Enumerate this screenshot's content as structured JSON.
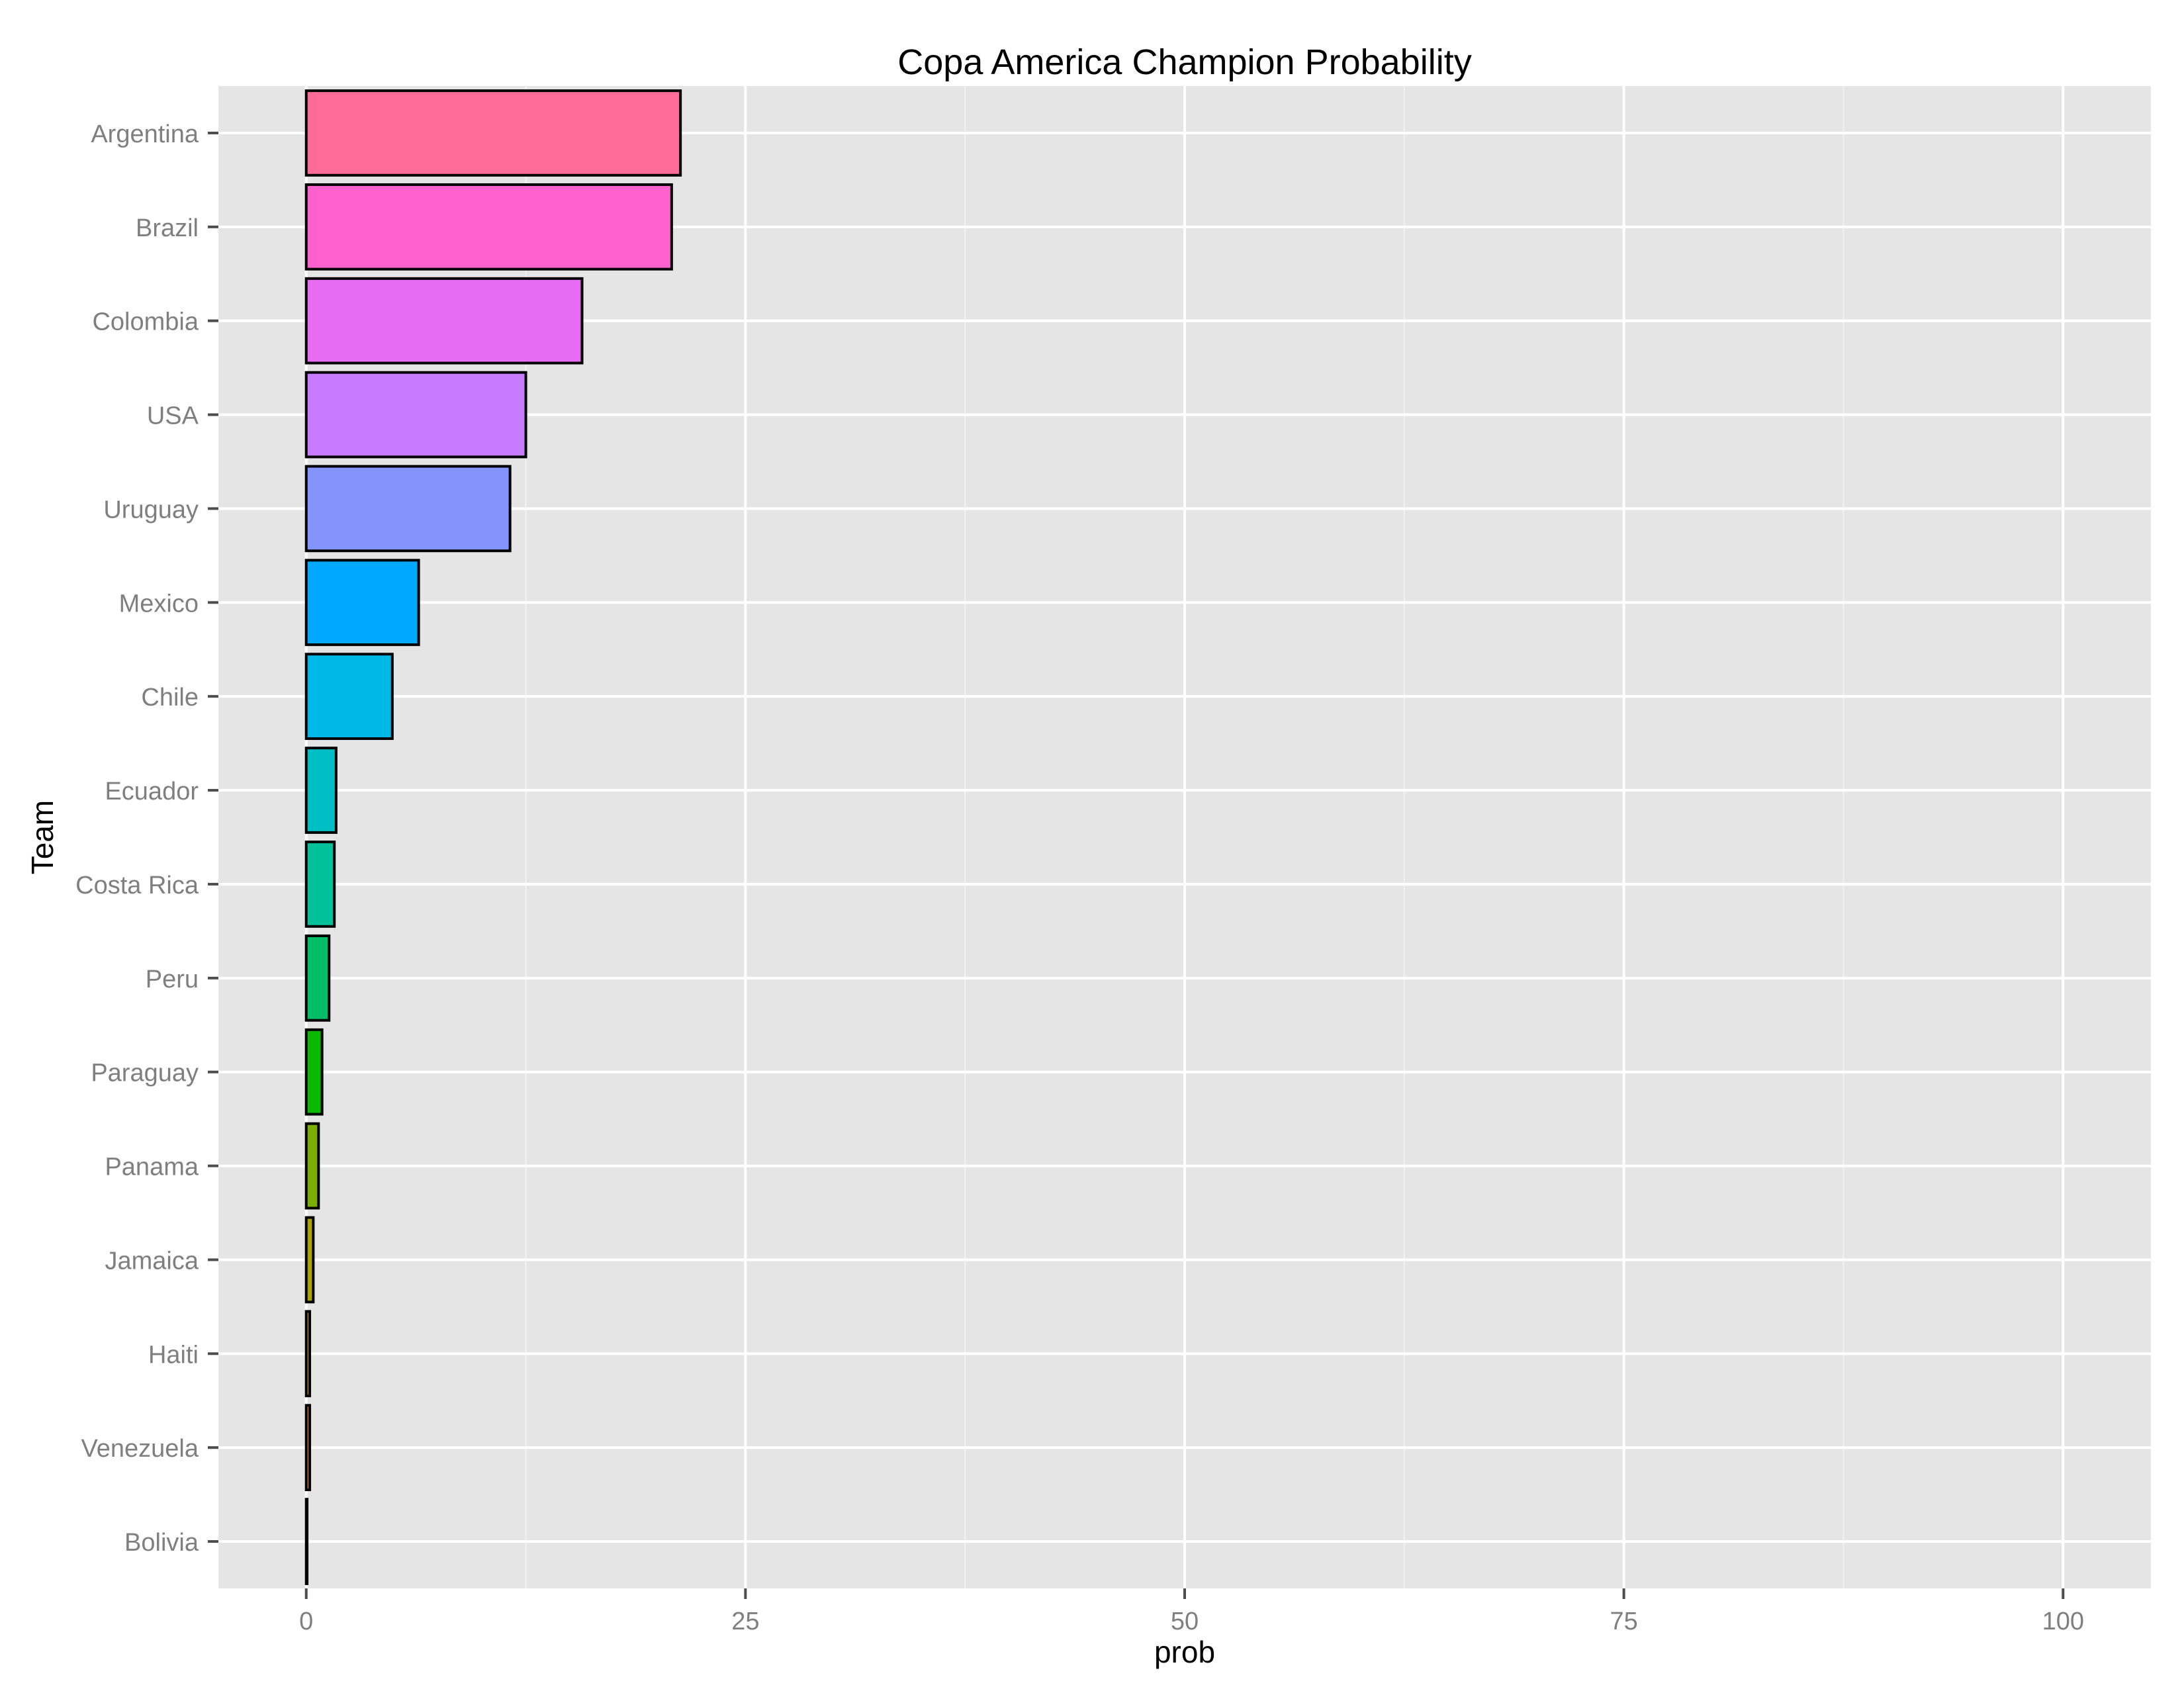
{
  "chart_data": {
    "type": "bar",
    "orientation": "horizontal",
    "title": "Copa America Champion Probability",
    "xlabel": "prob",
    "ylabel": "Team",
    "xlim": [
      -5,
      105
    ],
    "x_ticks": [
      0,
      25,
      50,
      75,
      100
    ],
    "grid": true,
    "legend": "none",
    "categories": [
      "Argentina",
      "Brazil",
      "Colombia",
      "USA",
      "Uruguay",
      "Mexico",
      "Chile",
      "Ecuador",
      "Costa Rica",
      "Peru",
      "Paraguay",
      "Panama",
      "Jamaica",
      "Haiti",
      "Venezuela",
      "Bolivia"
    ],
    "values": [
      21.3,
      20.8,
      15.7,
      12.5,
      11.6,
      6.4,
      4.9,
      1.7,
      1.6,
      1.3,
      0.9,
      0.7,
      0.4,
      0.2,
      0.2,
      0.05
    ],
    "colors": [
      "#FF6C9C",
      "#FF61CC",
      "#E86BF3",
      "#C77CFF",
      "#8494FF",
      "#00A9FF",
      "#00B8E7",
      "#00BFC4",
      "#00C19A",
      "#00BE67",
      "#0CB702",
      "#7CAE00",
      "#ABA300",
      "#CD9600",
      "#E68613",
      "#F8766D"
    ]
  }
}
